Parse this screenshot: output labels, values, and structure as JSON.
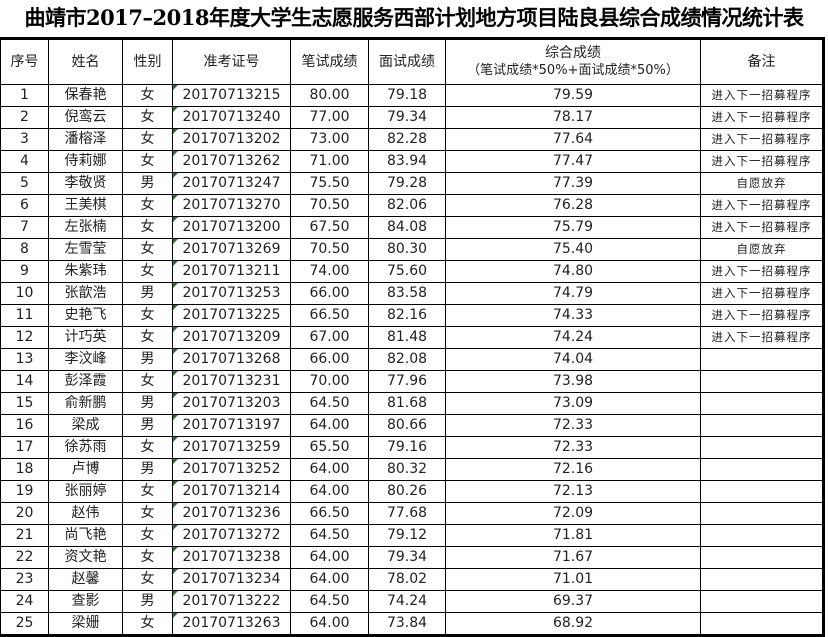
{
  "title": "曲靖市2017–2018年度大学生志愿服务西部计划地方项目陆良县综合成绩情况统计表",
  "headers": {
    "no": "序号",
    "name": "姓名",
    "gender": "性别",
    "exam_id": "准考证号",
    "written": "笔试成绩",
    "interview": "面试成绩",
    "total": "综合成绩",
    "total_formula": "（笔试成绩*50%+面试成绩*50%）",
    "note": "备注"
  },
  "rows": [
    [
      "1",
      "保春艳",
      "女",
      "20170713215",
      "80.00",
      "79.18",
      "79.59",
      "进入下一招募程序"
    ],
    [
      "2",
      "倪鸾云",
      "女",
      "20170713240",
      "77.00",
      "79.34",
      "78.17",
      "进入下一招募程序"
    ],
    [
      "3",
      "潘榕泽",
      "女",
      "20170713202",
      "73.00",
      "82.28",
      "77.64",
      "进入下一招募程序"
    ],
    [
      "4",
      "侍莉娜",
      "女",
      "20170713262",
      "71.00",
      "83.94",
      "77.47",
      "进入下一招募程序"
    ],
    [
      "5",
      "李敬贤",
      "男",
      "20170713247",
      "75.50",
      "79.28",
      "77.39",
      "自愿放弃"
    ],
    [
      "6",
      "王美棋",
      "女",
      "20170713270",
      "70.50",
      "82.06",
      "76.28",
      "进入下一招募程序"
    ],
    [
      "7",
      "左张楠",
      "女",
      "20170713200",
      "67.50",
      "84.08",
      "75.79",
      "进入下一招募程序"
    ],
    [
      "8",
      "左雪莹",
      "女",
      "20170713269",
      "70.50",
      "80.30",
      "75.40",
      "自愿放弃"
    ],
    [
      "9",
      "朱紫玮",
      "女",
      "20170713211",
      "74.00",
      "75.60",
      "74.80",
      "进入下一招募程序"
    ],
    [
      "10",
      "张歆浩",
      "男",
      "20170713253",
      "66.00",
      "83.58",
      "74.79",
      "进入下一招募程序"
    ],
    [
      "11",
      "史艳飞",
      "女",
      "20170713225",
      "66.50",
      "82.16",
      "74.33",
      "进入下一招募程序"
    ],
    [
      "12",
      "计巧英",
      "女",
      "20170713209",
      "67.00",
      "81.48",
      "74.24",
      "进入下一招募程序"
    ],
    [
      "13",
      "李汶峰",
      "男",
      "20170713268",
      "66.00",
      "82.08",
      "74.04",
      ""
    ],
    [
      "14",
      "彭泽霞",
      "女",
      "20170713231",
      "70.00",
      "77.96",
      "73.98",
      ""
    ],
    [
      "15",
      "俞新鹏",
      "男",
      "20170713203",
      "64.50",
      "81.68",
      "73.09",
      ""
    ],
    [
      "16",
      "梁成",
      "男",
      "20170713197",
      "64.00",
      "80.66",
      "72.33",
      ""
    ],
    [
      "17",
      "徐苏雨",
      "女",
      "20170713259",
      "65.50",
      "79.16",
      "72.33",
      ""
    ],
    [
      "18",
      "卢博",
      "男",
      "20170713252",
      "64.00",
      "80.32",
      "72.16",
      ""
    ],
    [
      "19",
      "张丽婷",
      "女",
      "20170713214",
      "64.00",
      "80.26",
      "72.13",
      ""
    ],
    [
      "20",
      "赵伟",
      "女",
      "20170713236",
      "66.50",
      "77.68",
      "72.09",
      ""
    ],
    [
      "21",
      "尚飞艳",
      "女",
      "20170713272",
      "64.50",
      "79.12",
      "71.81",
      ""
    ],
    [
      "22",
      "资文艳",
      "女",
      "20170713238",
      "64.00",
      "79.34",
      "71.67",
      ""
    ],
    [
      "23",
      "赵馨",
      "女",
      "20170713234",
      "64.00",
      "78.02",
      "71.01",
      ""
    ],
    [
      "24",
      "查影",
      "男",
      "20170713222",
      "64.50",
      "74.24",
      "69.37",
      ""
    ],
    [
      "25",
      "梁姗",
      "女",
      "20170713263",
      "64.00",
      "73.84",
      "68.92",
      ""
    ]
  ]
}
